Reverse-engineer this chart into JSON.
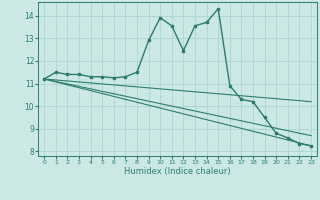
{
  "xlabel": "Humidex (Indice chaleur)",
  "xlim": [
    -0.5,
    23.5
  ],
  "ylim": [
    7.8,
    14.6
  ],
  "yticks": [
    8,
    9,
    10,
    11,
    12,
    13,
    14
  ],
  "xticks": [
    0,
    1,
    2,
    3,
    4,
    5,
    6,
    7,
    8,
    9,
    10,
    11,
    12,
    13,
    14,
    15,
    16,
    17,
    18,
    19,
    20,
    21,
    22,
    23
  ],
  "bg_color": "#cce8e5",
  "grid_color": "#aad4d0",
  "line_color": "#2a7d6e",
  "lines": [
    {
      "x": [
        0,
        1,
        2,
        3,
        4,
        5,
        6,
        7,
        8,
        9,
        10,
        11,
        12,
        13,
        14,
        15,
        16,
        17,
        18,
        19,
        20,
        21,
        22,
        23
      ],
      "y": [
        11.2,
        11.5,
        11.4,
        11.4,
        11.3,
        11.3,
        11.25,
        11.3,
        11.5,
        12.9,
        13.9,
        13.55,
        12.45,
        13.55,
        13.7,
        14.3,
        10.9,
        10.3,
        10.2,
        9.5,
        8.8,
        8.6,
        8.35,
        8.25
      ],
      "marker": true,
      "lw": 1.0
    },
    {
      "x": [
        0,
        23
      ],
      "y": [
        11.2,
        8.25
      ],
      "marker": false,
      "lw": 0.8
    },
    {
      "x": [
        0,
        23
      ],
      "y": [
        11.2,
        8.7
      ],
      "marker": false,
      "lw": 0.8
    },
    {
      "x": [
        0,
        23
      ],
      "y": [
        11.2,
        10.2
      ],
      "marker": false,
      "lw": 0.8
    }
  ]
}
